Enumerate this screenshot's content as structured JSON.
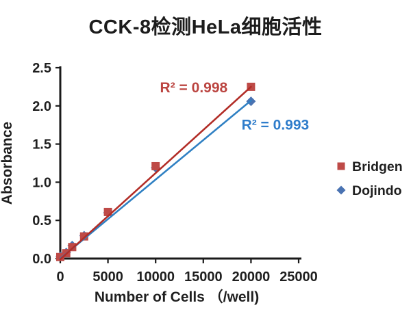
{
  "title": "CCK-8检测HeLa细胞活性",
  "chart_data": {
    "type": "scatter",
    "title": "CCK-8检测HeLa细胞活性",
    "xlabel": "Number of Cells （/well)",
    "ylabel": "Absorbance",
    "xlim": [
      0,
      25000
    ],
    "ylim": [
      0,
      2.5
    ],
    "xticks": [
      0,
      5000,
      10000,
      15000,
      20000,
      25000
    ],
    "xtick_labels": [
      "0",
      "5000",
      "10000",
      "15000",
      "20000",
      "25000"
    ],
    "yticks": [
      0.0,
      0.5,
      1.0,
      1.5,
      2.0,
      2.5
    ],
    "ytick_labels": [
      "0.0",
      "0.5",
      "1.0",
      "1.5",
      "2.0",
      "2.5"
    ],
    "grid": false,
    "legend_position": "right",
    "axis_color": "#1a1a1a",
    "text_color": "#1f1f1f",
    "series": [
      {
        "name": "Dojindo",
        "marker": "diamond",
        "marker_color": "#4a73b2",
        "line_color": "#2f80c3",
        "x": [
          0,
          625,
          1250,
          2500,
          5000,
          10000,
          20000
        ],
        "y": [
          0.03,
          0.08,
          0.17,
          0.3,
          0.6,
          1.19,
          2.06
        ],
        "trendline": {
          "x1": 0,
          "y1": 0.0,
          "x2": 20000,
          "y2": 2.07
        },
        "r2": "R² = 0.993"
      },
      {
        "name": "Bridgen",
        "marker": "square",
        "marker_color": "#be4a47",
        "line_color": "#b22d27",
        "x": [
          0,
          625,
          1250,
          2500,
          5000,
          10000,
          20000
        ],
        "y": [
          0.02,
          0.07,
          0.15,
          0.29,
          0.61,
          1.21,
          2.25
        ],
        "trendline": {
          "x1": 0,
          "y1": -0.01,
          "x2": 20000,
          "y2": 2.25
        },
        "r2": "R² = 0.998"
      }
    ],
    "annotations": [
      {
        "text": "R² = 0.998",
        "color": "#bb4440",
        "x": 14000,
        "y": 2.24,
        "series": "Bridgen"
      },
      {
        "text": "R² = 0.993",
        "color": "#2f7dcb",
        "x": 22550,
        "y": 1.75,
        "series": "Dojindo"
      }
    ]
  }
}
